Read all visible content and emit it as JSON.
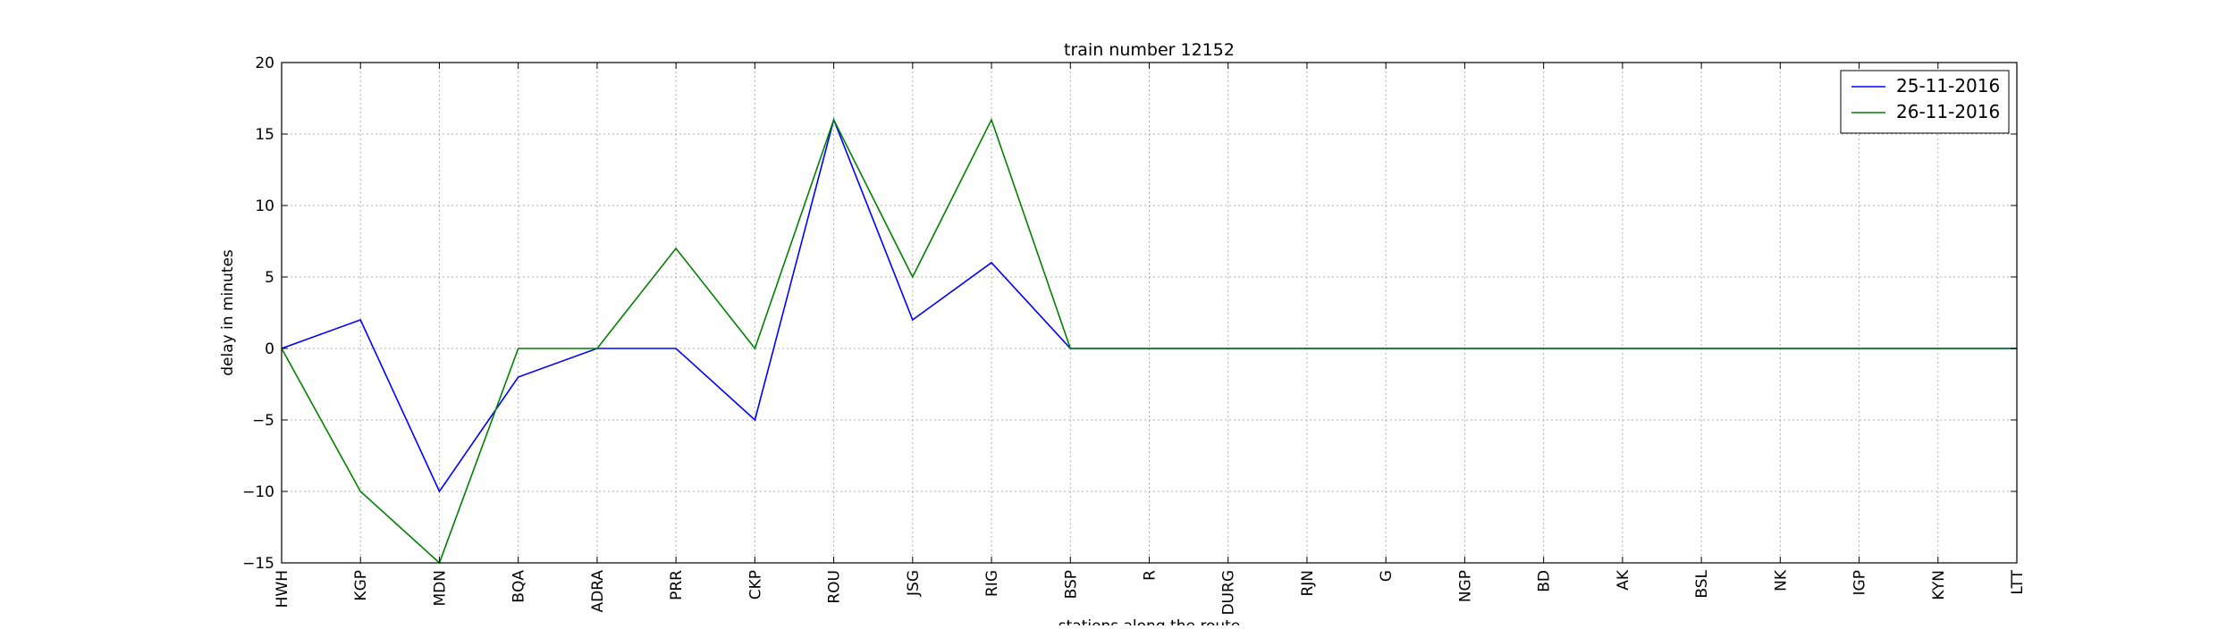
{
  "chart_data": {
    "type": "line",
    "title": "train number 12152",
    "xlabel": "stations along the route",
    "ylabel": "delay in minutes",
    "categories": [
      "HWH",
      "KGP",
      "MDN",
      "BQA",
      "ADRA",
      "PRR",
      "CKP",
      "ROU",
      "JSG",
      "RIG",
      "BSP",
      "R",
      "DURG",
      "RJN",
      "G",
      "NGP",
      "BD",
      "AK",
      "BSL",
      "NK",
      "IGP",
      "KYN",
      "LTT"
    ],
    "ylim": [
      -15,
      20
    ],
    "yticks": [
      -15,
      -10,
      -5,
      0,
      5,
      10,
      15,
      20
    ],
    "ytick_labels": [
      "−15",
      "−10",
      "−5",
      "0",
      "5",
      "10",
      "15",
      "20"
    ],
    "grid": true,
    "legend": "top-right",
    "series": [
      {
        "name": "25-11-2016",
        "color": "#0000ff",
        "values": [
          0,
          2,
          -10,
          -2,
          0,
          0,
          -5,
          16,
          2,
          6,
          0,
          0,
          0,
          0,
          0,
          0,
          0,
          0,
          0,
          0,
          0,
          0,
          0
        ]
      },
      {
        "name": "26-11-2016",
        "color": "#008000",
        "values": [
          0,
          -10,
          -15,
          0,
          0,
          7,
          0,
          16,
          5,
          16,
          0,
          0,
          0,
          0,
          0,
          0,
          0,
          0,
          0,
          0,
          0,
          0,
          0
        ]
      }
    ]
  }
}
